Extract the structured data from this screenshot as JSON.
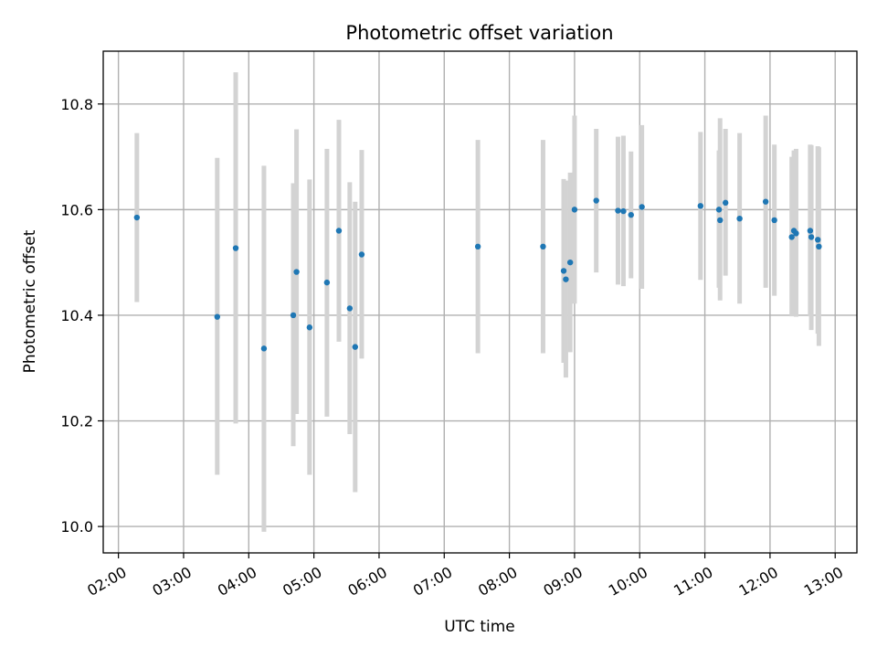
{
  "chart_data": {
    "type": "scatter",
    "title": "Photometric offset variation",
    "xlabel": "UTC time",
    "ylabel": "Photometric offset",
    "x_unit": "time of day (HH:MM)",
    "xlim": [
      "01:46",
      "13:20"
    ],
    "ylim": [
      9.95,
      10.9
    ],
    "x_ticks": [
      "02:00",
      "03:00",
      "04:00",
      "05:00",
      "06:00",
      "07:00",
      "08:00",
      "09:00",
      "10:00",
      "11:00",
      "12:00",
      "13:00"
    ],
    "y_ticks": [
      10.0,
      10.2,
      10.4,
      10.6,
      10.8
    ],
    "y_tick_labels": [
      "10.0",
      "10.2",
      "10.4",
      "10.6",
      "10.8"
    ],
    "grid": true,
    "legend": "none",
    "colors": {
      "point": "#1f77b4",
      "errorbar": "#d3d3d3"
    },
    "points": [
      {
        "x": "02:17",
        "y": 10.585,
        "lo": 10.425,
        "hi": 10.745
      },
      {
        "x": "03:31",
        "y": 10.397,
        "lo": 10.098,
        "hi": 10.698
      },
      {
        "x": "03:48",
        "y": 10.527,
        "lo": 10.195,
        "hi": 10.86
      },
      {
        "x": "04:14",
        "y": 10.337,
        "lo": 9.99,
        "hi": 10.683
      },
      {
        "x": "04:41",
        "y": 10.4,
        "lo": 10.152,
        "hi": 10.65
      },
      {
        "x": "04:44",
        "y": 10.482,
        "lo": 10.213,
        "hi": 10.752
      },
      {
        "x": "04:56",
        "y": 10.377,
        "lo": 10.098,
        "hi": 10.657
      },
      {
        "x": "05:12",
        "y": 10.462,
        "lo": 10.208,
        "hi": 10.715
      },
      {
        "x": "05:23",
        "y": 10.56,
        "lo": 10.35,
        "hi": 10.77
      },
      {
        "x": "05:33",
        "y": 10.413,
        "lo": 10.175,
        "hi": 10.652
      },
      {
        "x": "05:38",
        "y": 10.34,
        "lo": 10.065,
        "hi": 10.615
      },
      {
        "x": "05:44",
        "y": 10.515,
        "lo": 10.318,
        "hi": 10.713
      },
      {
        "x": "07:31",
        "y": 10.53,
        "lo": 10.328,
        "hi": 10.732
      },
      {
        "x": "08:31",
        "y": 10.53,
        "lo": 10.328,
        "hi": 10.732
      },
      {
        "x": "08:50",
        "y": 10.484,
        "lo": 10.31,
        "hi": 10.658
      },
      {
        "x": "08:52",
        "y": 10.468,
        "lo": 10.282,
        "hi": 10.655
      },
      {
        "x": "08:56",
        "y": 10.5,
        "lo": 10.33,
        "hi": 10.67
      },
      {
        "x": "09:00",
        "y": 10.6,
        "lo": 10.422,
        "hi": 10.778
      },
      {
        "x": "09:20",
        "y": 10.617,
        "lo": 10.481,
        "hi": 10.753
      },
      {
        "x": "09:40",
        "y": 10.598,
        "lo": 10.458,
        "hi": 10.738
      },
      {
        "x": "09:45",
        "y": 10.597,
        "lo": 10.455,
        "hi": 10.74
      },
      {
        "x": "09:52",
        "y": 10.59,
        "lo": 10.47,
        "hi": 10.71
      },
      {
        "x": "10:02",
        "y": 10.605,
        "lo": 10.45,
        "hi": 10.76
      },
      {
        "x": "10:56",
        "y": 10.607,
        "lo": 10.467,
        "hi": 10.747
      },
      {
        "x": "11:13",
        "y": 10.6,
        "lo": 10.452,
        "hi": 10.712
      },
      {
        "x": "11:14",
        "y": 10.58,
        "lo": 10.428,
        "hi": 10.773
      },
      {
        "x": "11:19",
        "y": 10.613,
        "lo": 10.475,
        "hi": 10.753
      },
      {
        "x": "11:32",
        "y": 10.583,
        "lo": 10.422,
        "hi": 10.745
      },
      {
        "x": "11:56",
        "y": 10.615,
        "lo": 10.452,
        "hi": 10.778
      },
      {
        "x": "12:04",
        "y": 10.58,
        "lo": 10.437,
        "hi": 10.723
      },
      {
        "x": "12:20",
        "y": 10.548,
        "lo": 10.398,
        "hi": 10.7
      },
      {
        "x": "12:22",
        "y": 10.56,
        "lo": 10.4,
        "hi": 10.712
      },
      {
        "x": "12:24",
        "y": 10.555,
        "lo": 10.397,
        "hi": 10.715
      },
      {
        "x": "12:37",
        "y": 10.56,
        "lo": 10.398,
        "hi": 10.723
      },
      {
        "x": "12:38",
        "y": 10.548,
        "lo": 10.372,
        "hi": 10.722
      },
      {
        "x": "12:44",
        "y": 10.543,
        "lo": 10.365,
        "hi": 10.72
      },
      {
        "x": "12:45",
        "y": 10.53,
        "lo": 10.342,
        "hi": 10.718
      }
    ]
  }
}
